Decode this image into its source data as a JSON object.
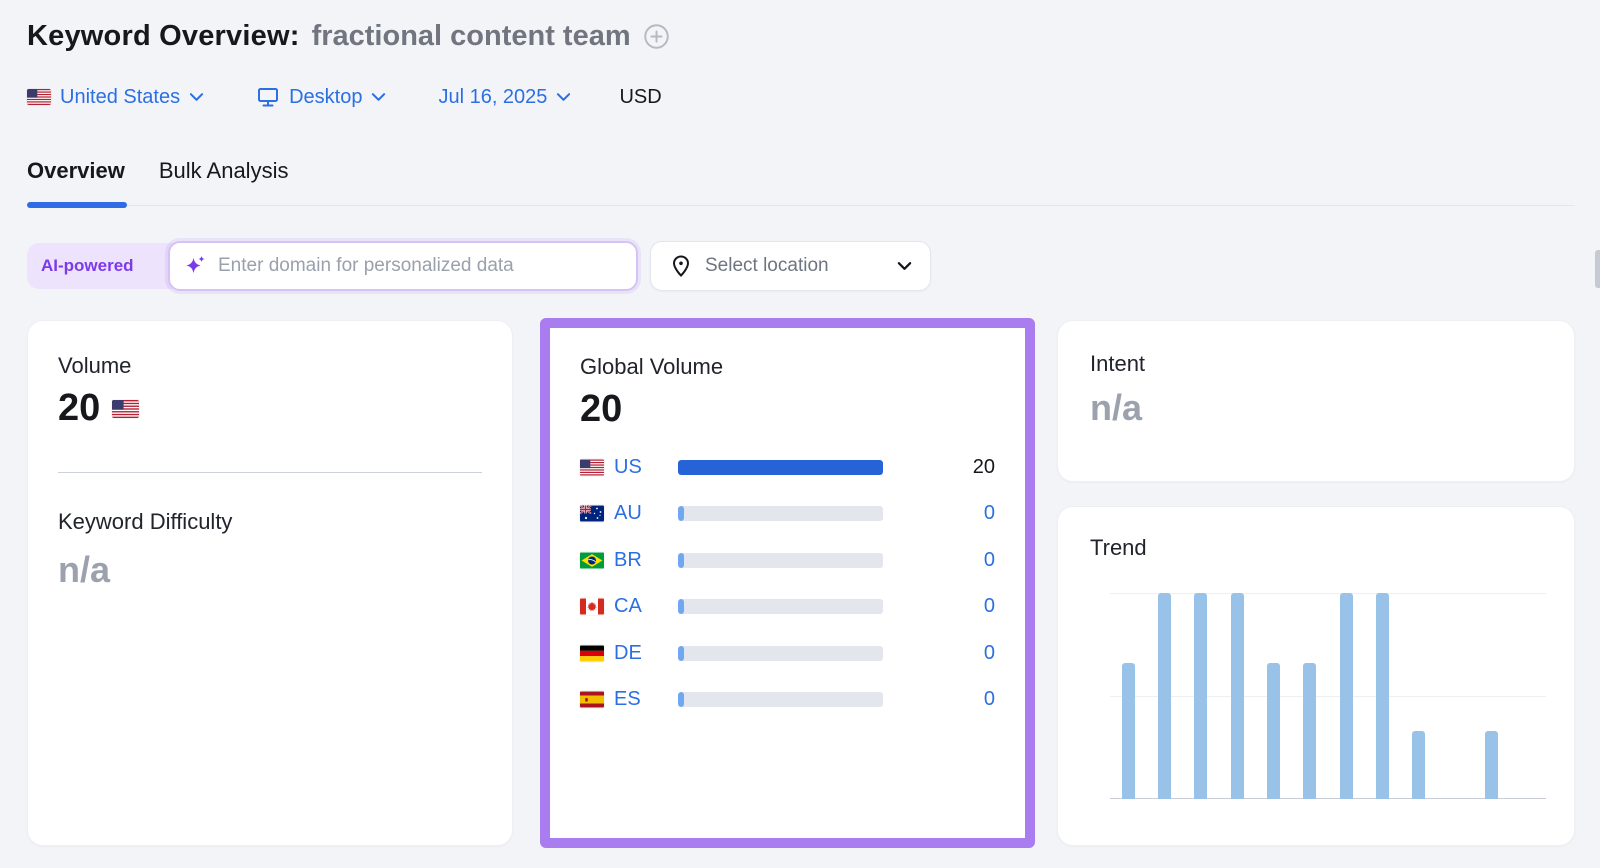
{
  "header": {
    "title": "Keyword Overview:",
    "keyword": "fractional content team"
  },
  "filters": {
    "country": "United States",
    "device": "Desktop",
    "date": "Jul 16, 2025",
    "currency": "USD"
  },
  "tabs": {
    "overview": "Overview",
    "bulk_analysis": "Bulk Analysis"
  },
  "toolbar": {
    "ai_badge": "AI-powered",
    "domain_placeholder": "Enter domain for personalized data",
    "location_label": "Select location"
  },
  "cards": {
    "volume": {
      "label": "Volume",
      "value": "20",
      "country": "US"
    },
    "keyword_difficulty": {
      "label": "Keyword Difficulty",
      "value": "n/a"
    },
    "global_volume": {
      "label": "Global Volume",
      "value": "20",
      "rows": [
        {
          "code": "US",
          "value": "20",
          "share": 100
        },
        {
          "code": "AU",
          "value": "0",
          "share": 3
        },
        {
          "code": "BR",
          "value": "0",
          "share": 3
        },
        {
          "code": "CA",
          "value": "0",
          "share": 3
        },
        {
          "code": "DE",
          "value": "0",
          "share": 3
        },
        {
          "code": "ES",
          "value": "0",
          "share": 3
        }
      ]
    },
    "intent": {
      "label": "Intent",
      "value": "n/a"
    },
    "trend": {
      "label": "Trend"
    }
  },
  "chart_data": [
    {
      "type": "bar",
      "title": "Trend",
      "categories": [
        "",
        "",
        "",
        "",
        "",
        "",
        "",
        "",
        "",
        "",
        "",
        ""
      ],
      "values": [
        0.66,
        1,
        1,
        1,
        0.66,
        0.66,
        1,
        1,
        0.33,
        0,
        0.33,
        0
      ],
      "xlabel": "",
      "ylabel": "",
      "ylim": [
        0,
        1
      ],
      "grid": "3 horizontal gridlines at 0%, 50%, 100%; no tick labels",
      "legend": false,
      "bar_color": "#99C2E9"
    },
    {
      "type": "bar",
      "orientation": "horizontal",
      "title": "Global Volume by country",
      "categories": [
        "US",
        "AU",
        "BR",
        "CA",
        "DE",
        "ES"
      ],
      "values": [
        20,
        0,
        0,
        0,
        0,
        0
      ],
      "xlabel": "",
      "ylabel": "",
      "legend": false
    }
  ],
  "colors": {
    "page_bg": "#F3F4F8",
    "accent_blue": "#2B6FE3",
    "tab_underline_blue": "#2E6BE5",
    "bar_blue": "#2563D6",
    "bar_sliver_blue": "#6FA8F0",
    "bar_track_gray": "#E3E6ED",
    "trend_bar_blue": "#99C2E9",
    "highlight_purple": "#A97DEF",
    "ai_purple": "#7C3BE8",
    "ai_badge_bg": "#EDE3FC",
    "muted_gray": "#9BA1AD"
  },
  "icons": {
    "title_add": "plus-circle-icon",
    "device": "desktop-monitor-icon",
    "domain_input": "ai-sparkle-icon",
    "location": "map-pin-icon",
    "dropdown": "chevron-down-icon"
  }
}
